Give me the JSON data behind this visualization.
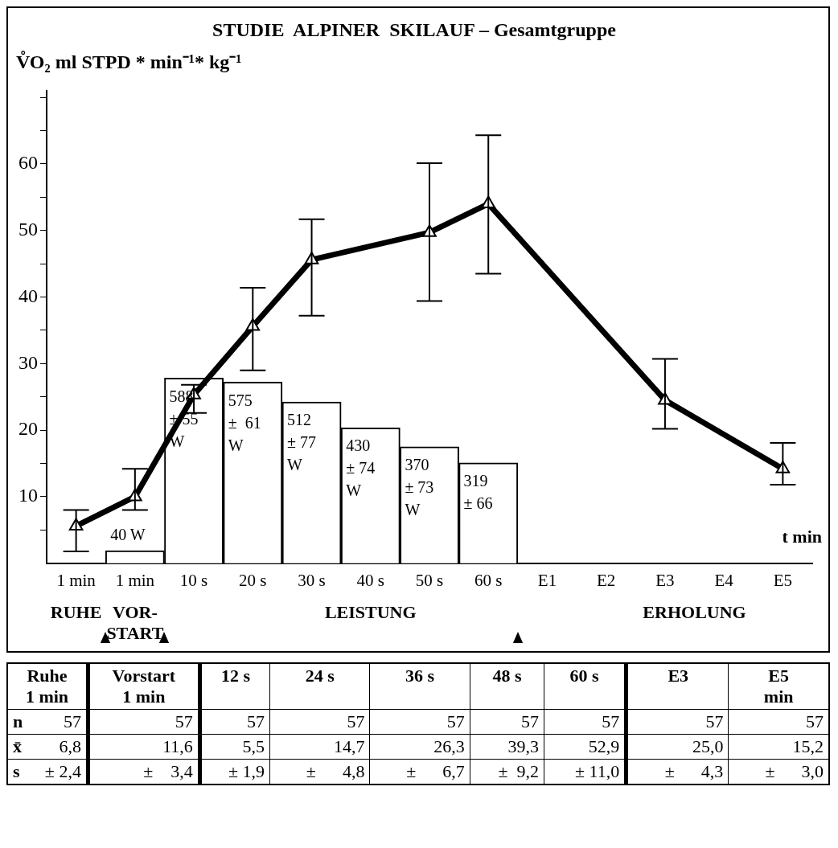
{
  "chart_data": [
    {
      "type": "line",
      "title": "STUDIE  ALPINER  SKILAUF – Gesamtgruppe",
      "ylabel": "V̊O₂ ml STPD * min⁻¹* kg⁻¹",
      "xlabel": "t min",
      "categories": [
        "1 min",
        "1 min",
        "10 s",
        "20 s",
        "30 s",
        "40 s",
        "50 s",
        "60 s",
        "E1",
        "E2",
        "E3",
        "E4",
        "E5"
      ],
      "series": [
        {
          "type": "bar",
          "axis": "y2",
          "color": "#ffffff",
          "values": [
            null,
            40,
            588,
            575,
            512,
            430,
            370,
            319,
            null,
            null,
            null,
            null,
            null
          ],
          "value_labels": [
            null,
            "40 W",
            "588\n± 55\nW",
            "575\n±  61\nW",
            "512\n± 77\nW",
            "430\n± 74\nW",
            "370\n± 73\nW",
            "319\n± 66",
            null,
            null,
            null,
            null,
            null
          ]
        },
        {
          "type": "line",
          "color": "#000000",
          "values": [
            5.6,
            10.0,
            25.3,
            35.6,
            45.6,
            null,
            49.7,
            54.0,
            null,
            null,
            24.5,
            null,
            14.2
          ],
          "errors": [
            [
              1.8,
              8.0
            ],
            [
              8.0,
              14.2
            ],
            [
              22.6,
              26.8
            ],
            [
              29.0,
              41.4
            ],
            [
              37.2,
              51.7
            ],
            null,
            [
              39.4,
              60.1
            ],
            [
              43.5,
              64.3
            ],
            null,
            null,
            [
              20.2,
              30.7
            ],
            null,
            [
              11.8,
              18.1
            ]
          ]
        }
      ],
      "ylim": [
        0,
        71
      ],
      "yticks": [
        {
          "value": 5,
          "label": null
        },
        10,
        {
          "value": 15,
          "label": null
        },
        20,
        {
          "value": 25,
          "label": null
        },
        30,
        {
          "value": 35,
          "label": null
        },
        40,
        {
          "value": 45,
          "label": null
        },
        50,
        {
          "value": 55,
          "label": null
        },
        60,
        {
          "value": 65,
          "label": null
        },
        {
          "value": 70,
          "label": null
        }
      ],
      "y2lim": [
        0,
        1500
      ],
      "marker": "triangle",
      "line_style": "solid",
      "grid": false,
      "legend": false,
      "annotations": [
        "RUHE",
        "VOR-\nSTART",
        "LEISTUNG",
        "ERHOLUNG"
      ]
    },
    {
      "type": "other",
      "categories": [
        "Ruhe\n1 min",
        "Vorstart\n1 min",
        "12 s",
        "24 s",
        "36 s",
        "48 s",
        "60 s",
        "E3",
        "E5\nmin"
      ],
      "y_categories": [
        "n",
        "x̄",
        "s"
      ],
      "cell_labels": [
        [
          "57",
          "57",
          "57",
          "57",
          "57",
          "57",
          "57",
          "57",
          "57"
        ],
        [
          "6,8",
          "11,6",
          "5,5",
          "14,7",
          "26,3",
          "39,3",
          "52,9",
          "25,0",
          "15,2"
        ],
        [
          "± 2,4",
          "±    3,4",
          "± 1,9",
          "±      4,8",
          "±      6,7",
          "±  9,2",
          "± 11,0",
          "±      4,3",
          "±      3,0"
        ]
      ]
    }
  ]
}
